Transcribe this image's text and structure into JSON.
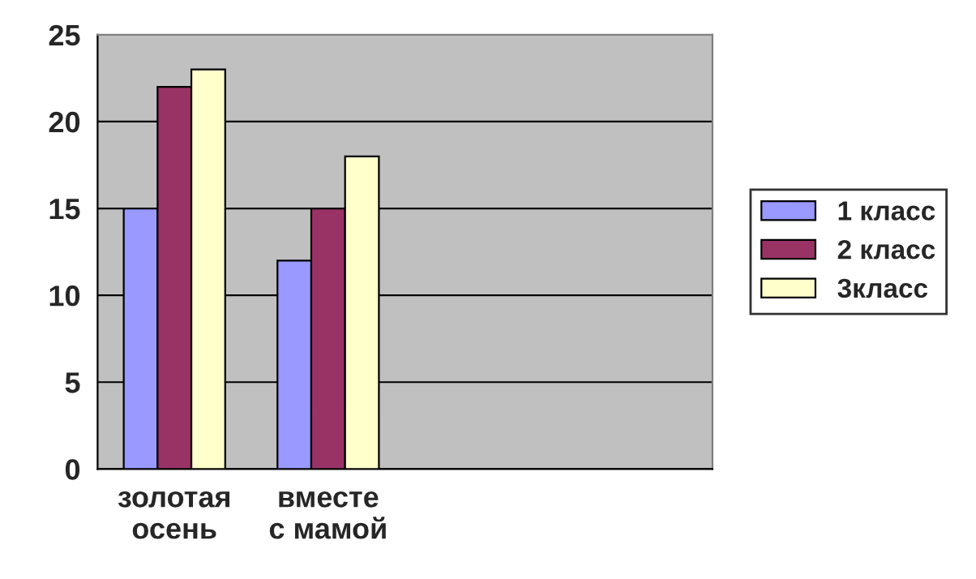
{
  "chart_data": {
    "type": "bar",
    "categories": [
      "золотая\nосень",
      "вместе\nс мамой",
      null,
      null
    ],
    "series": [
      {
        "name": "1 класс",
        "color": "#9999ff",
        "values": [
          15,
          12,
          null,
          null
        ]
      },
      {
        "name": "2 класс",
        "color": "#993366",
        "values": [
          22,
          15,
          null,
          null
        ]
      },
      {
        "name": "3класс",
        "color": "#ffffcc",
        "values": [
          23,
          18,
          null,
          null
        ]
      }
    ],
    "ylim": [
      0,
      25
    ],
    "yticks": [
      0,
      5,
      10,
      15,
      20,
      25
    ],
    "grid": "y",
    "legend": "right"
  }
}
